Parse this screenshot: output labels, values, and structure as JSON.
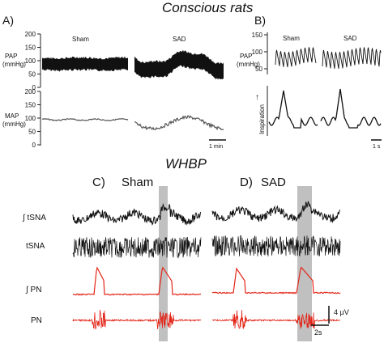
{
  "titles": {
    "top": "Conscious rats",
    "bottom": "WHBP"
  },
  "panel_letters": {
    "a": "A)",
    "b": "B)",
    "c": "C)",
    "d": "D)"
  },
  "group_names": {
    "sham": "Sham",
    "sad": "SAD"
  },
  "axis_labels": {
    "pap": "PAP",
    "map": "MAP",
    "unit": "(mmHg)",
    "inspiration": "Inspiration",
    "arrow": "↑"
  },
  "ticks_200": [
    "200",
    "150",
    "100",
    "50",
    "0"
  ],
  "ticks_150": [
    "150",
    "100",
    "50"
  ],
  "scale_labels": {
    "min1": "1 min",
    "s1": "1 s",
    "uv": "4 µV",
    "s2": "2s"
  },
  "trace_labels": {
    "itsna": "∫ tSNA",
    "tsna": "tSNA",
    "ipn": "∫ PN",
    "pn": "PN"
  },
  "colors": {
    "trace": "#111111",
    "red": "#e32619",
    "shade": "#b5b5b5",
    "mapline": "#555555"
  },
  "chart_data": [
    {
      "type": "line",
      "panel": "A",
      "ylabel": "PAP (mmHg)",
      "yticks": [
        0,
        50,
        100,
        150,
        200
      ],
      "ylim": [
        0,
        200
      ],
      "series": [
        {
          "name": "Sham",
          "band_low": 62,
          "band_high": 98,
          "mean": 82
        },
        {
          "name": "SAD",
          "band_low": 15,
          "band_high": 150,
          "mean": 80
        }
      ]
    },
    {
      "type": "line",
      "panel": "A",
      "ylabel": "MAP (mmHg)",
      "yticks": [
        0,
        50,
        100,
        150,
        200
      ],
      "ylim": [
        0,
        200
      ],
      "series": [
        {
          "name": "Sham",
          "mean": 88
        },
        {
          "name": "SAD",
          "mean": 75,
          "min": 38,
          "max": 118
        }
      ]
    },
    {
      "type": "line",
      "panel": "B",
      "ylabel": "PAP (mmHg)",
      "yticks": [
        50,
        100,
        150
      ],
      "ylim": [
        30,
        150
      ],
      "series": [
        {
          "name": "Sham",
          "systolic": 128,
          "diastolic": 72
        },
        {
          "name": "SAD",
          "systolic": 130,
          "diastolic": 65
        }
      ]
    },
    {
      "type": "line",
      "panel": "C",
      "series": [
        {
          "name": "∫ tSNA"
        },
        {
          "name": "tSNA"
        },
        {
          "name": "∫ PN"
        },
        {
          "name": "PN"
        }
      ]
    },
    {
      "type": "line",
      "panel": "D",
      "series": [
        {
          "name": "∫ tSNA"
        },
        {
          "name": "tSNA"
        },
        {
          "name": "∫ PN"
        },
        {
          "name": "PN"
        }
      ]
    }
  ]
}
